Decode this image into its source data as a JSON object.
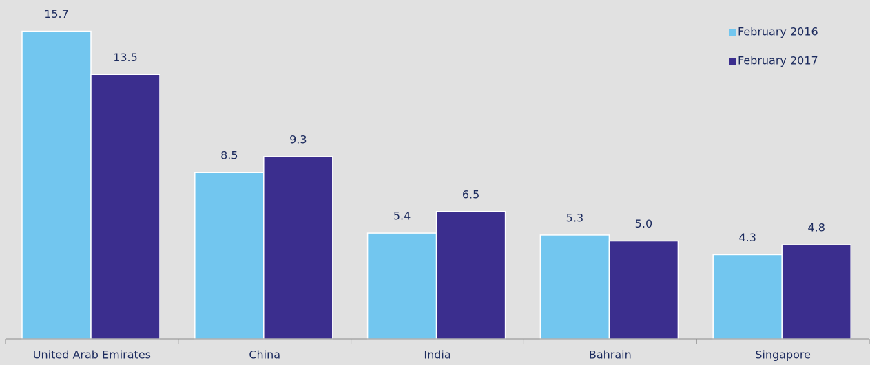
{
  "chart_data": {
    "type": "bar",
    "categories": [
      "United Arab Emirates",
      "China",
      "India",
      "Bahrain",
      "Singapore"
    ],
    "series": [
      {
        "name": "February 2016",
        "color": "#72c6ef",
        "values": [
          15.7,
          8.5,
          5.4,
          5.3,
          4.3
        ],
        "value_labels": [
          "15.7",
          "8.5",
          "5.4",
          "5.3",
          "4.3"
        ]
      },
      {
        "name": "February 2017",
        "color": "#3b2e8e",
        "values": [
          13.5,
          9.3,
          6.5,
          5.0,
          4.8
        ],
        "value_labels": [
          "13.5",
          "9.3",
          "6.5",
          "5.0",
          "4.8"
        ]
      }
    ],
    "ylim": [
      0,
      16
    ],
    "legend": "upper right"
  }
}
